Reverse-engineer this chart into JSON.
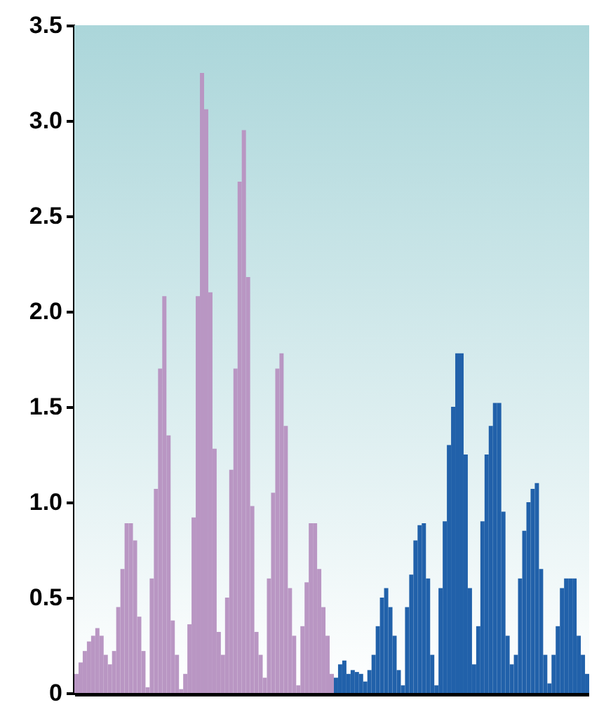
{
  "chart_data": {
    "type": "bar",
    "tick_labels": "y",
    "categories": [
      null,
      null,
      null,
      null,
      null,
      null,
      null,
      null,
      null,
      null,
      null,
      null,
      null,
      null,
      null,
      null,
      null,
      null,
      null,
      null,
      null,
      null,
      null,
      null,
      null,
      null,
      null,
      null,
      null,
      null,
      null,
      null,
      null,
      null,
      null,
      null,
      null,
      null,
      null,
      null,
      null,
      null,
      null,
      null,
      null,
      null,
      null,
      null,
      null,
      null,
      null,
      null,
      null,
      null,
      null,
      null,
      null,
      null,
      null,
      null,
      null,
      null,
      null,
      null,
      null,
      null,
      null,
      null,
      null,
      null,
      null,
      null,
      null,
      null,
      null,
      null,
      null,
      null,
      null,
      null,
      null,
      null,
      null,
      null,
      null,
      null,
      null,
      null,
      null,
      null,
      null,
      null,
      null,
      null,
      null,
      null,
      null,
      null,
      null,
      null,
      null,
      null,
      null,
      null,
      null,
      null,
      null,
      null,
      null,
      null,
      null,
      null,
      null,
      null,
      null,
      null,
      null,
      null,
      null,
      null,
      null,
      null,
      null
    ],
    "ylim": [
      0,
      3.5
    ],
    "yticks": [
      0,
      0.5,
      {
        "value": 1,
        "label": "1.0"
      },
      1.5,
      {
        "value": 2,
        "label": "2.0"
      },
      2.5,
      {
        "value": 3,
        "label": "3.0"
      },
      3.5
    ],
    "series": [
      {
        "color": "#b996c3",
        "values": [
          0.1,
          0.16,
          0.22,
          0.27,
          0.3,
          0.34,
          0.3,
          0.2,
          0.15,
          0.22,
          0.45,
          0.65,
          0.89,
          0.89,
          0.8,
          0.4,
          0.22,
          0.03,
          0.6,
          1.07,
          1.7,
          2.08,
          1.35,
          0.38,
          0.2,
          0.02,
          0.1,
          0.36,
          0.92,
          2.08,
          3.25,
          3.06,
          2.1,
          1.28,
          0.32,
          0.2,
          0.5,
          1.17,
          1.7,
          2.68,
          2.95,
          2.18,
          0.98,
          0.32,
          0.2,
          0.08,
          0.6,
          1.05,
          1.7,
          1.78,
          1.4,
          0.55,
          0.3,
          0.04,
          0.35,
          0.58,
          0.89,
          0.89,
          0.65,
          0.45,
          0.3,
          0.1,
          null,
          null,
          null,
          null,
          null,
          null,
          null,
          null,
          null,
          null,
          null,
          null,
          null,
          null,
          null,
          null,
          null,
          null,
          null,
          null,
          null,
          null,
          null,
          null,
          null,
          null,
          null,
          null,
          null,
          null,
          null,
          null,
          null,
          null,
          null,
          null,
          null,
          null,
          null,
          null,
          null,
          null,
          null,
          null,
          null,
          null,
          null,
          null,
          null,
          null,
          null,
          null,
          null,
          null,
          null,
          null,
          null,
          null,
          null,
          null,
          null
        ]
      },
      {
        "color": "#2161aa",
        "values": [
          null,
          null,
          null,
          null,
          null,
          null,
          null,
          null,
          null,
          null,
          null,
          null,
          null,
          null,
          null,
          null,
          null,
          null,
          null,
          null,
          null,
          null,
          null,
          null,
          null,
          null,
          null,
          null,
          null,
          null,
          null,
          null,
          null,
          null,
          null,
          null,
          null,
          null,
          null,
          null,
          null,
          null,
          null,
          null,
          null,
          null,
          null,
          null,
          null,
          null,
          null,
          null,
          null,
          null,
          null,
          null,
          null,
          null,
          null,
          null,
          null,
          null,
          0.08,
          0.15,
          0.17,
          0.1,
          0.12,
          0.11,
          0.1,
          0.06,
          0.12,
          0.2,
          0.35,
          0.5,
          0.55,
          0.45,
          0.3,
          0.12,
          0.04,
          0.45,
          0.62,
          0.8,
          0.88,
          0.89,
          0.6,
          0.2,
          0.04,
          0.55,
          0.9,
          1.3,
          1.5,
          1.78,
          1.78,
          1.25,
          0.55,
          0.15,
          0.35,
          0.9,
          1.25,
          1.4,
          1.52,
          1.52,
          0.95,
          0.3,
          0.15,
          0.2,
          0.6,
          0.85,
          1.0,
          1.07,
          1.1,
          0.65,
          0.2,
          0.05,
          0.2,
          0.35,
          0.55,
          0.6,
          0.6,
          0.6,
          0.3,
          0.2,
          0.1
        ]
      }
    ]
  }
}
